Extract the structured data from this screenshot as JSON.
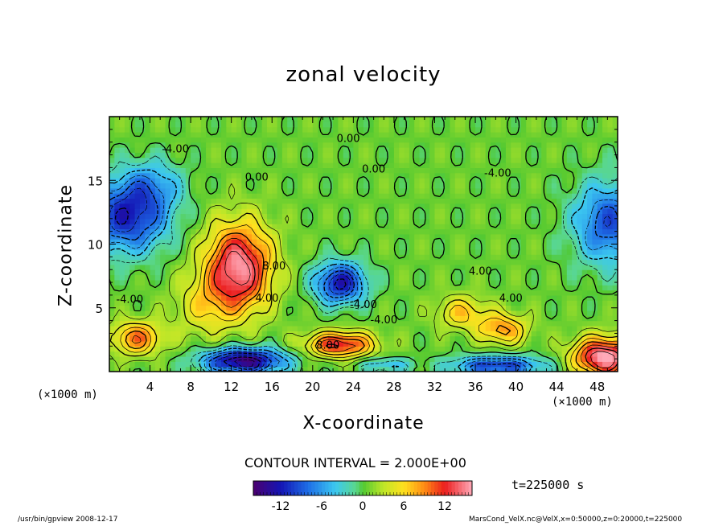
{
  "chart_data": {
    "type": "contour",
    "title": "zonal velocity",
    "xlabel": "X-coordinate",
    "ylabel": "Z-coordinate",
    "x_unit_label": "(×1000 m)",
    "xlim": [
      0,
      50
    ],
    "ylim": [
      0,
      20
    ],
    "x_ticks": [
      4,
      8,
      12,
      16,
      20,
      24,
      28,
      32,
      36,
      40,
      44,
      48
    ],
    "y_ticks": [
      5,
      10,
      15
    ],
    "contour_interval_label": "CONTOUR INTERVAL = 2.000E+00",
    "time_label": "t=225000 s",
    "colorbar": {
      "min": -16,
      "max": 16,
      "ticks": [
        -12,
        -6,
        0,
        6,
        12
      ]
    },
    "contour_labels": [
      {
        "text": "-4.00",
        "x": 6.5,
        "y": 17.2
      },
      {
        "text": "0.00",
        "x": 23.5,
        "y": 18.0
      },
      {
        "text": "0.00",
        "x": 14.5,
        "y": 15.0
      },
      {
        "text": "0.00",
        "x": 26.0,
        "y": 15.6
      },
      {
        "text": "-4.00",
        "x": 38.2,
        "y": 15.3
      },
      {
        "text": "-4.00",
        "x": 2.0,
        "y": 5.4
      },
      {
        "text": "8.00",
        "x": 16.2,
        "y": 8.0
      },
      {
        "text": "4.00",
        "x": 15.5,
        "y": 5.5
      },
      {
        "text": "-4.00",
        "x": 25.0,
        "y": 5.0
      },
      {
        "text": "-4.00",
        "x": 27.0,
        "y": 3.8
      },
      {
        "text": "8.00",
        "x": 21.5,
        "y": 1.8
      },
      {
        "text": "4.00",
        "x": 36.5,
        "y": 7.6
      },
      {
        "text": "4.00",
        "x": 39.5,
        "y": 5.5
      }
    ],
    "features": [
      {
        "kind": "jet",
        "x": 12.5,
        "y": 8.0,
        "sx": 3.2,
        "sy": 3.4,
        "value": 15
      },
      {
        "kind": "jet",
        "x": 22.5,
        "y": 2.0,
        "sx": 3.3,
        "sy": 1.0,
        "value": 12
      },
      {
        "kind": "jet",
        "x": 38.5,
        "y": 3.2,
        "sx": 2.4,
        "sy": 1.2,
        "value": 8
      },
      {
        "kind": "jet",
        "x": 2.5,
        "y": 2.5,
        "sx": 2.5,
        "sy": 1.3,
        "value": 9
      },
      {
        "kind": "jet",
        "x": 34.5,
        "y": 4.5,
        "sx": 2.5,
        "sy": 1.3,
        "value": 6
      },
      {
        "kind": "jet",
        "x": 48.5,
        "y": 1.0,
        "sx": 3.0,
        "sy": 1.5,
        "value": 16
      },
      {
        "kind": "jet",
        "x": 9.0,
        "y": 5.0,
        "sx": 3.0,
        "sy": 2.5,
        "value": 4
      },
      {
        "kind": "trough",
        "x": 1.5,
        "y": 12.0,
        "sx": 4.0,
        "sy": 2.8,
        "value": -12
      },
      {
        "kind": "trough",
        "x": 49.0,
        "y": 11.5,
        "sx": 3.5,
        "sy": 3.2,
        "value": -10
      },
      {
        "kind": "trough",
        "x": 22.5,
        "y": 6.8,
        "sx": 2.5,
        "sy": 1.6,
        "value": -13
      },
      {
        "kind": "trough",
        "x": 13.0,
        "y": 0.7,
        "sx": 4.0,
        "sy": 1.0,
        "value": -16
      },
      {
        "kind": "trough",
        "x": 38.0,
        "y": 0.3,
        "sx": 4.5,
        "sy": 0.8,
        "value": -11
      },
      {
        "kind": "trough",
        "x": 4.0,
        "y": 14.5,
        "sx": 3.0,
        "sy": 2.0,
        "value": -5
      },
      {
        "kind": "trough",
        "x": 27.0,
        "y": 0.4,
        "sx": 2.5,
        "sy": 0.6,
        "value": -5
      }
    ]
  },
  "footer": {
    "left": "/usr/bin/gpview   2008-12-17",
    "right": "MarsCond_VelX.nc@VelX,x=0:50000,z=0:20000,t=225000"
  }
}
